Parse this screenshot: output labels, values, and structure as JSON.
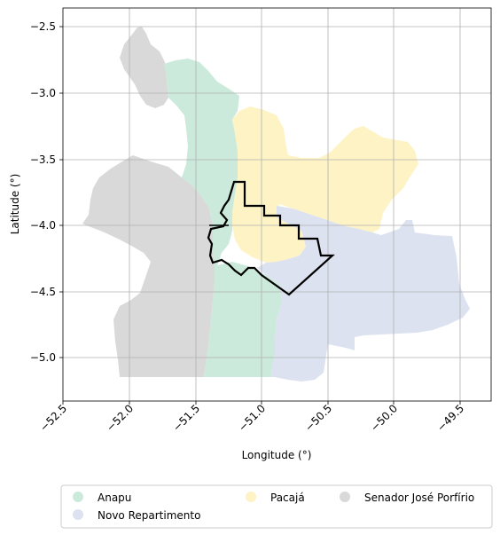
{
  "map": {
    "xlabel": "Longitude (°)",
    "ylabel": "Latitude (°)",
    "x_ticks": [
      "−52.5",
      "−52.0",
      "−51.5",
      "−51.0",
      "−50.5",
      "−50.0",
      "−49.5"
    ],
    "y_ticks": [
      "−2.5",
      "−3.0",
      "−3.5",
      "−4.0",
      "−4.5",
      "−5.0"
    ],
    "xlim": [
      -52.75,
      -49.28
    ],
    "ylim": [
      -5.33,
      -2.37
    ],
    "grid": true
  },
  "regions": [
    {
      "name": "Anapu",
      "color": "#cbeadb"
    },
    {
      "name": "Novo Repartimento",
      "color": "#dde2f0"
    },
    {
      "name": "Pacajá",
      "color": "#fef3c5"
    },
    {
      "name": "Senador José Porfírio",
      "color": "#d9d9d9"
    }
  ],
  "legend": {
    "location": "below plot",
    "items": [
      "Anapu",
      "Novo Repartimento",
      "Pacajá",
      "Senador José Porfírio"
    ]
  },
  "boundary_outline": {
    "color": "#000000"
  }
}
